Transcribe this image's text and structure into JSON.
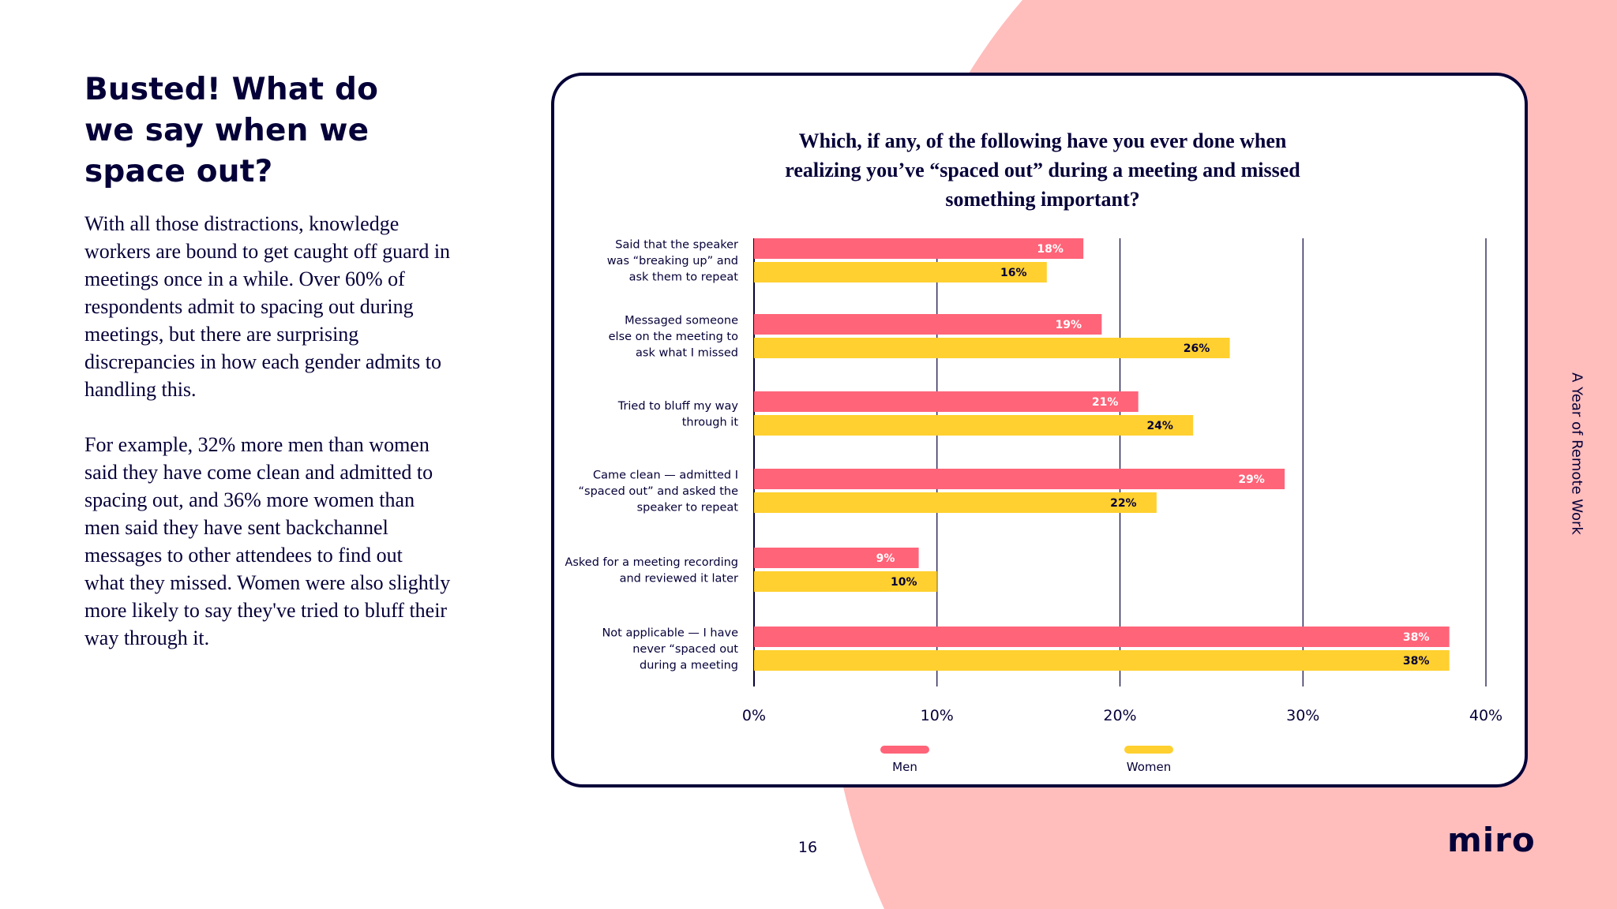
{
  "colors": {
    "background": "#ffffff",
    "pink_shape": "#ffbdbc",
    "navy": "#050038",
    "men": "#ff6479",
    "women": "#ffd02f"
  },
  "heading_lines": [
    "Busted! What do",
    "we say when we",
    "space out?"
  ],
  "body_paragraphs": [
    [
      "With all those distractions, knowledge",
      "workers are bound to get caught off guard in",
      "meetings once in a while. Over 60% of",
      "respondents admit to spacing out during",
      "meetings, but there are surprising",
      "discrepancies in how each gender admits to",
      "handling this."
    ],
    [
      "For example, 32% more men than women",
      "said they have come clean and admitted to",
      "spacing out, and 36% more women than",
      "men said they have sent backchannel",
      "messages to other attendees to find out",
      "what they missed. Women were also slightly",
      "more likely to say they've tried to bluff their",
      "way through it."
    ]
  ],
  "side_label": "A Year of Remote Work",
  "page_number": "16",
  "logo": "miro",
  "chart_data": {
    "type": "bar",
    "orientation": "horizontal",
    "title_lines": [
      "Which, if any, of the following have you ever done when",
      "realizing you’ve “spaced out” during a meeting and missed",
      "something important?"
    ],
    "categories": [
      [
        "Said that the speaker",
        "was “breaking up” and",
        "ask them to repeat"
      ],
      [
        "Messaged someone",
        "else on the meeting to",
        "ask what I missed"
      ],
      [
        "Tried to bluff my way",
        "through it"
      ],
      [
        "Came clean — admitted I",
        "“spaced out” and asked the",
        "speaker to repeat"
      ],
      [
        "Asked for a meeting recording",
        "and reviewed it later"
      ],
      [
        "Not applicable — I have",
        "never “spaced out",
        "during a meeting"
      ]
    ],
    "series": [
      {
        "name": "Men",
        "color": "#ff6479",
        "values": [
          18,
          19,
          21,
          29,
          9,
          38
        ],
        "labels": [
          "18%",
          "19%",
          "21%",
          "29%",
          "9%",
          "38%"
        ]
      },
      {
        "name": "Women",
        "color": "#ffd02f",
        "values": [
          16,
          26,
          24,
          22,
          10,
          38
        ],
        "labels": [
          "16%",
          "26%",
          "24%",
          "22%",
          "10%",
          "38%"
        ]
      }
    ],
    "x_ticks": [
      "0%",
      "10%",
      "20%",
      "30%",
      "40%"
    ],
    "xlim": [
      0,
      40
    ],
    "grid": true,
    "legend_position": "bottom"
  }
}
